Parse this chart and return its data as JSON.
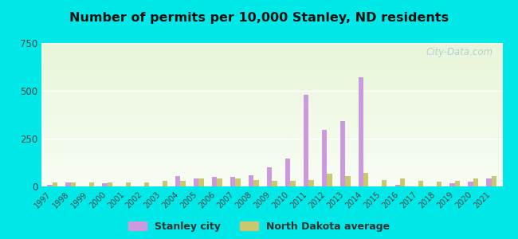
{
  "title": "Number of permits per 10,000 Stanley, ND residents",
  "years": [
    1997,
    1998,
    1999,
    2000,
    2001,
    2002,
    2003,
    2004,
    2005,
    2006,
    2007,
    2008,
    2009,
    2010,
    2011,
    2012,
    2013,
    2014,
    2015,
    2016,
    2017,
    2018,
    2019,
    2020,
    2021
  ],
  "stanley": [
    8,
    20,
    0,
    15,
    0,
    0,
    0,
    55,
    40,
    50,
    50,
    60,
    100,
    145,
    480,
    295,
    340,
    570,
    0,
    10,
    0,
    0,
    15,
    25,
    40
  ],
  "nd_avg": [
    20,
    20,
    20,
    20,
    20,
    20,
    30,
    30,
    40,
    40,
    40,
    35,
    30,
    30,
    35,
    65,
    55,
    70,
    35,
    40,
    30,
    25,
    30,
    40,
    55
  ],
  "stanley_color": "#cc99dd",
  "nd_avg_color": "#c8c870",
  "outer_bg": "#00e8e8",
  "plot_bg_top": "#e8f5d8",
  "plot_bg_bottom": "#f8fdf4",
  "ylim": [
    0,
    750
  ],
  "yticks": [
    0,
    250,
    500,
    750
  ],
  "bar_width": 0.28,
  "legend_labels": [
    "Stanley city",
    "North Dakota average"
  ],
  "watermark": "City-Data.com"
}
